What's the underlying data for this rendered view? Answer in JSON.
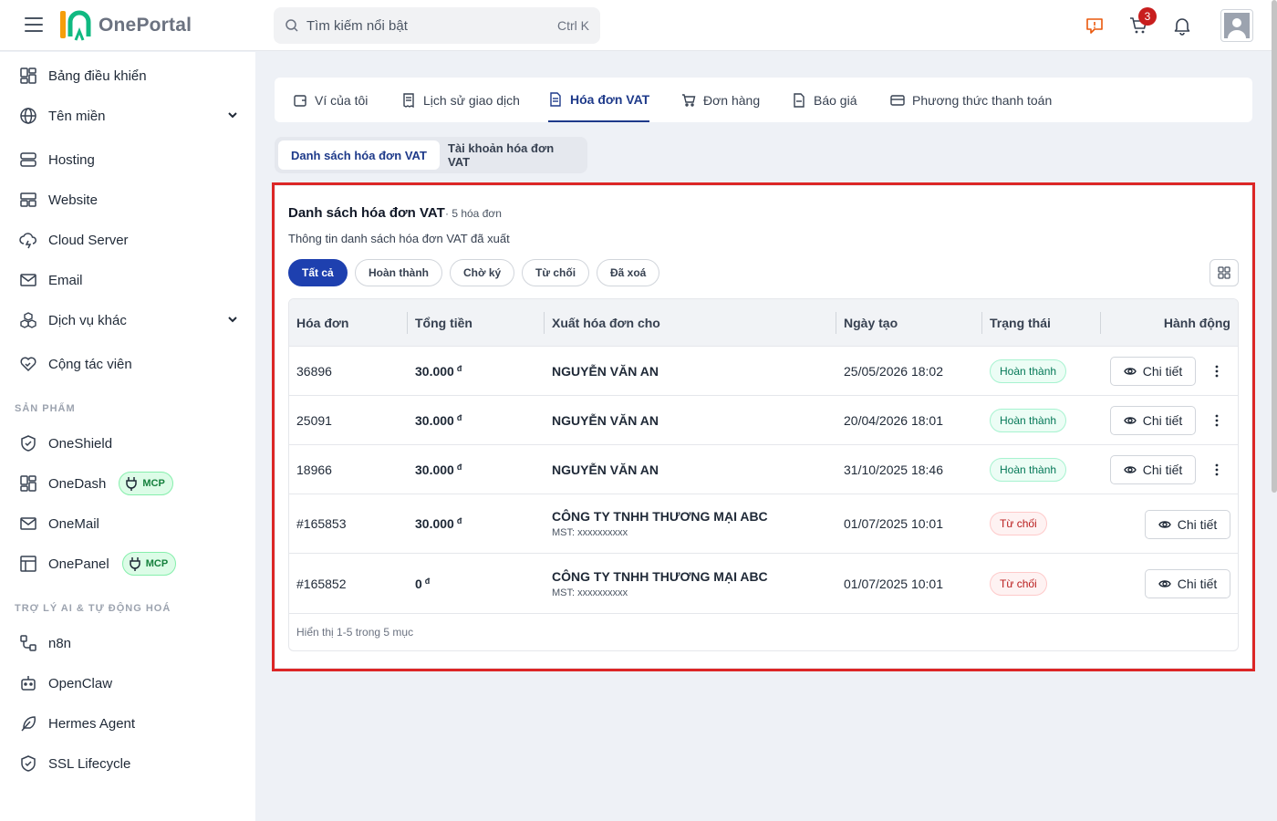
{
  "app": {
    "name": "OnePortal"
  },
  "header": {
    "search_placeholder": "Tìm kiếm nổi bật",
    "search_shortcut": "Ctrl K",
    "cart_count": "3"
  },
  "sidebar": {
    "items": [
      {
        "label": "Bảng điều khiển",
        "icon": "dashboard-icon"
      },
      {
        "label": "Tên miền",
        "icon": "globe-icon"
      },
      {
        "label": "Hosting",
        "icon": "server-icon"
      },
      {
        "label": "Website",
        "icon": "website-icon"
      },
      {
        "label": "Cloud Server",
        "icon": "cloud-icon"
      },
      {
        "label": "Email",
        "icon": "mail-icon"
      },
      {
        "label": "Dịch vụ khác",
        "icon": "cubes-icon"
      },
      {
        "label": "Cộng tác viên",
        "icon": "handshake-heart-icon"
      }
    ],
    "section_products": "SẢN PHẨM",
    "products": [
      {
        "label": "OneShield",
        "icon": "shield-icon"
      },
      {
        "label": "OneDash",
        "icon": "dashboard-icon",
        "badge": "MCP"
      },
      {
        "label": "OneMail",
        "icon": "mail-icon"
      },
      {
        "label": "OnePanel",
        "icon": "panel-icon",
        "badge": "MCP"
      }
    ],
    "section_ai": "TRỢ LÝ AI & TỰ ĐỘNG HOÁ",
    "ai": [
      {
        "label": "n8n",
        "icon": "workflow-icon"
      },
      {
        "label": "OpenClaw",
        "icon": "robot-icon"
      },
      {
        "label": "Hermes Agent",
        "icon": "feather-icon"
      },
      {
        "label": "SSL Lifecycle",
        "icon": "shield-check-icon"
      }
    ]
  },
  "tabs": [
    {
      "label": "Ví của tôi",
      "icon": "wallet-icon"
    },
    {
      "label": "Lịch sử giao dịch",
      "icon": "receipt-icon"
    },
    {
      "label": "Hóa đơn VAT",
      "icon": "document-icon",
      "active": true
    },
    {
      "label": "Đơn hàng",
      "icon": "cart-icon"
    },
    {
      "label": "Báo giá",
      "icon": "file-icon"
    },
    {
      "label": "Phương thức thanh toán",
      "icon": "credit-card-icon"
    }
  ],
  "subtabs": [
    {
      "label": "Danh sách hóa đơn VAT",
      "active": true
    },
    {
      "label": "Tài khoản hóa đơn VAT"
    }
  ],
  "card": {
    "title": "Danh sách hóa đơn VAT",
    "count": "· 5 hóa đơn",
    "description": "Thông tin danh sách hóa đơn VAT đã xuất",
    "filters": [
      "Tất cả",
      "Hoàn thành",
      "Chờ ký",
      "Từ chối",
      "Đã xoá"
    ],
    "active_filter": "Tất cả"
  },
  "table": {
    "headers": [
      "Hóa đơn",
      "Tổng tiền",
      "Xuất hóa đơn cho",
      "Ngày tạo",
      "Trạng thái",
      "Hành động"
    ],
    "rows": [
      {
        "id": "36896",
        "amount": "30.000",
        "currency": "đ",
        "customer": "NGUYỄN VĂN AN",
        "mst": "",
        "date": "25/05/2026 18:02",
        "status": "Hoàn thành",
        "action": "Chi tiết"
      },
      {
        "id": "25091",
        "amount": "30.000",
        "currency": "đ",
        "customer": "NGUYỄN VĂN AN",
        "mst": "",
        "date": "20/04/2026 18:01",
        "status": "Hoàn thành",
        "action": "Chi tiết"
      },
      {
        "id": "18966",
        "amount": "30.000",
        "currency": "đ",
        "customer": "NGUYỄN VĂN AN",
        "mst": "",
        "date": "31/10/2025 18:46",
        "status": "Hoàn thành",
        "action": "Chi tiết"
      },
      {
        "id": "#165853",
        "amount": "30.000",
        "currency": "đ",
        "customer": "CÔNG TY TNHH THƯƠNG MẠI ABC",
        "mst": "MST: xxxxxxxxxx",
        "date": "01/07/2025 10:01",
        "status": "Từ chối",
        "action": "Chi tiết"
      },
      {
        "id": "#165852",
        "amount": "0",
        "currency": "đ",
        "customer": "CÔNG TY TNHH THƯƠNG MẠI ABC",
        "mst": "MST: xxxxxxxxxx",
        "date": "01/07/2025 10:01",
        "status": "Từ chối",
        "action": "Chi tiết"
      }
    ],
    "footer": "Hiển thị 1-5 trong 5 mục"
  },
  "colors": {
    "accent": "#1e40af",
    "highlight": "#dc2626",
    "success": "#047857",
    "danger": "#b91c1c"
  }
}
